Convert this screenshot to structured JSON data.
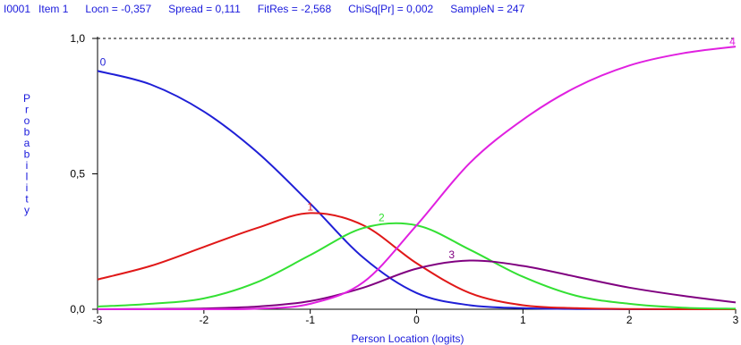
{
  "header": {
    "item_id": "I0001",
    "item_name": "Item 1",
    "locn": "Locn = -0,357",
    "spread": "Spread = 0,111",
    "fitres": "FitRes = -2,568",
    "chisq": "ChiSq[Pr] = 0,002",
    "samplen": "SampleN = 247"
  },
  "chart_data": {
    "type": "line",
    "xlabel": "Person Location (logits)",
    "ylabel": "Probability",
    "xlim": [
      -3,
      3
    ],
    "ylim": [
      0,
      1
    ],
    "x_ticks": [
      "-3",
      "-2",
      "-1",
      "0",
      "1",
      "2",
      "3"
    ],
    "y_ticks": [
      "0,0",
      "0,5",
      "1,0"
    ],
    "reference_line": {
      "y": 1.0,
      "style": "dashed"
    },
    "series": [
      {
        "name": "0",
        "color": "#1f1fd6",
        "x": [
          -3,
          -2.5,
          -2,
          -1.5,
          -1,
          -0.5,
          0,
          0.5,
          1,
          1.5,
          2,
          2.5,
          3
        ],
        "y": [
          0.88,
          0.83,
          0.73,
          0.58,
          0.39,
          0.19,
          0.06,
          0.015,
          0.004,
          0.001,
          0.0,
          0.0,
          0.0
        ]
      },
      {
        "name": "1",
        "color": "#e01818",
        "x": [
          -3,
          -2.5,
          -2,
          -1.5,
          -1,
          -0.5,
          0,
          0.5,
          1,
          1.5,
          2,
          2.5,
          3
        ],
        "y": [
          0.11,
          0.16,
          0.23,
          0.3,
          0.355,
          0.31,
          0.17,
          0.06,
          0.015,
          0.004,
          0.001,
          0.0,
          0.0
        ]
      },
      {
        "name": "2",
        "color": "#33e033",
        "x": [
          -3,
          -2.5,
          -2,
          -1.5,
          -1,
          -0.5,
          0,
          0.5,
          1,
          1.5,
          2,
          2.5,
          3
        ],
        "y": [
          0.01,
          0.02,
          0.04,
          0.1,
          0.2,
          0.3,
          0.31,
          0.22,
          0.12,
          0.05,
          0.02,
          0.006,
          0.002
        ]
      },
      {
        "name": "3",
        "color": "#800080",
        "x": [
          -3,
          -2.5,
          -2,
          -1.5,
          -1,
          -0.5,
          0,
          0.5,
          1,
          1.5,
          2,
          2.5,
          3
        ],
        "y": [
          0.0,
          0.001,
          0.003,
          0.01,
          0.03,
          0.08,
          0.15,
          0.18,
          0.16,
          0.12,
          0.08,
          0.05,
          0.025
        ]
      },
      {
        "name": "4",
        "color": "#e020e0",
        "x": [
          -3,
          -2.5,
          -2,
          -1.5,
          -1,
          -0.5,
          0,
          0.5,
          1,
          1.5,
          2,
          2.5,
          3
        ],
        "y": [
          0.0,
          0.0,
          0.0,
          0.002,
          0.02,
          0.1,
          0.31,
          0.54,
          0.7,
          0.82,
          0.9,
          0.945,
          0.97
        ]
      }
    ],
    "curve_labels": [
      {
        "text": "0",
        "x": -2.95,
        "y": 0.9
      },
      {
        "text": "1",
        "x": -1.0,
        "y": 0.365
      },
      {
        "text": "2",
        "x": -0.33,
        "y": 0.325
      },
      {
        "text": "3",
        "x": 0.33,
        "y": 0.188
      },
      {
        "text": "4",
        "x": 2.97,
        "y": 0.975
      }
    ]
  }
}
